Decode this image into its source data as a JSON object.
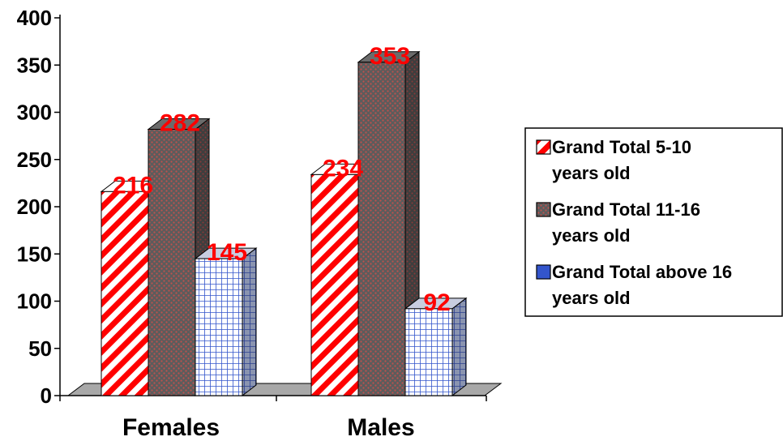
{
  "chart_data": {
    "type": "bar",
    "categories": [
      "Females",
      "Males"
    ],
    "series": [
      {
        "name": "Grand Total 5-10 years old",
        "legend_lines": [
          "Grand Total 5-10",
          "years old"
        ],
        "values": [
          216,
          234
        ],
        "color": "#ff0000",
        "pattern": "diagonal-stripes"
      },
      {
        "name": "Grand Total 11-16 years old",
        "legend_lines": [
          "Grand Total 11-16",
          "years old"
        ],
        "values": [
          282,
          353
        ],
        "color": "#555555",
        "pattern": "dotted"
      },
      {
        "name": "Grand Total above 16 years old",
        "legend_lines": [
          "Grand Total above 16",
          "years old"
        ],
        "values": [
          145,
          92
        ],
        "color": "#3355cc",
        "pattern": "grid"
      }
    ],
    "yticks": [
      0,
      50,
      100,
      150,
      200,
      250,
      300,
      350,
      400
    ],
    "ylim": [
      0,
      400
    ],
    "data_label_color": "#ff0000",
    "legend_position": "right",
    "three_d": true,
    "grid": false
  }
}
